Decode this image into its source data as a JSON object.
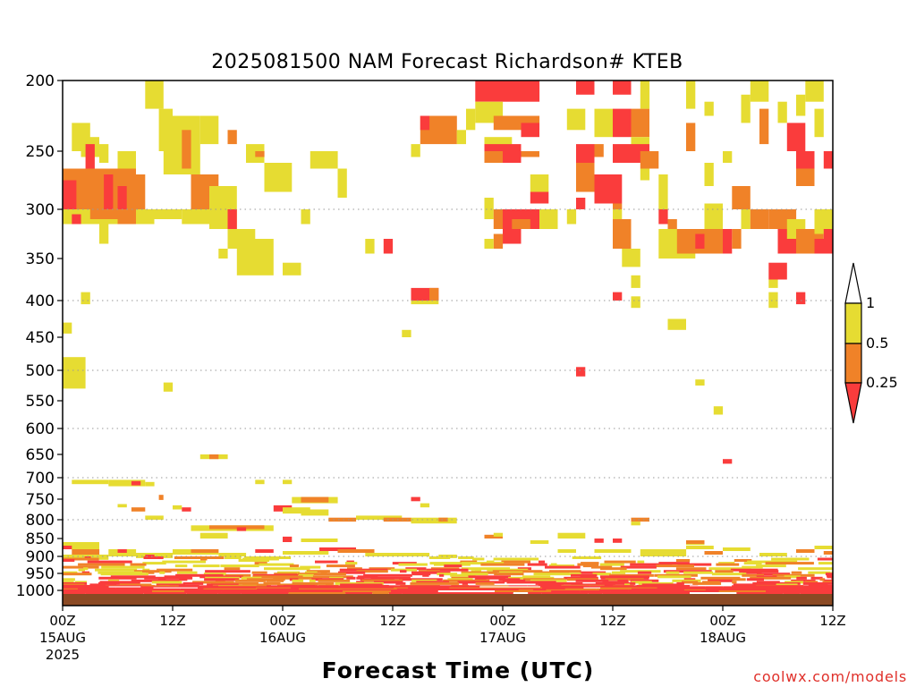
{
  "chart_data": {
    "type": "heatmap",
    "title": "2025081500 NAM Forecast Richardson# KTEB",
    "xlabel": "Forecast Time (UTC)",
    "ylabel": "",
    "credit": "coolwx.com/models",
    "x_unit": "forecast hour",
    "xlim": [
      0,
      84
    ],
    "y_scale": "pressure (hPa), reversed",
    "ylim": [
      1025,
      200
    ],
    "y_ticks": [
      200,
      250,
      300,
      350,
      400,
      450,
      500,
      550,
      600,
      650,
      700,
      750,
      800,
      850,
      900,
      950,
      1000
    ],
    "y_tick_labels": [
      "200",
      "250",
      "300",
      "350",
      "400",
      "450",
      "500",
      "550",
      "600",
      "650",
      "700",
      "750",
      "800",
      "850",
      "900",
      "950",
      "1000"
    ],
    "grid": "dotted horizontal at 300, 400, 500, 600, 700, 800, 900 hPa",
    "x_ticks": [
      {
        "hour": 0,
        "lines": [
          "00Z",
          "15AUG",
          "2025"
        ]
      },
      {
        "hour": 12,
        "lines": [
          "12Z"
        ]
      },
      {
        "hour": 24,
        "lines": [
          "00Z",
          "16AUG"
        ]
      },
      {
        "hour": 36,
        "lines": [
          "12Z"
        ]
      },
      {
        "hour": 48,
        "lines": [
          "00Z",
          "17AUG"
        ]
      },
      {
        "hour": 60,
        "lines": [
          "12Z"
        ]
      },
      {
        "hour": 72,
        "lines": [
          "00Z",
          "18AUG"
        ]
      },
      {
        "hour": 84,
        "lines": [
          "12Z"
        ]
      }
    ],
    "colorbar": {
      "ticks": [
        "1",
        "0.5",
        "0.25"
      ],
      "classes": [
        {
          "range": "0.5–1",
          "color": "#e6dc32"
        },
        {
          "range": "0.25–0.5",
          "color": "#f08228"
        },
        {
          "range": "< 0.25",
          "color": "#fa3c3c"
        }
      ],
      "extend": "both",
      "upper_extension_color": "#ffffff"
    },
    "terrain_color": "#8b4a24",
    "colors": {
      "y": "#e6dc32",
      "o": "#f08228",
      "r": "#fa3c3c"
    },
    "cells": [
      [
        "y",
        9,
        11,
        200,
        220
      ],
      [
        "y",
        10.5,
        12,
        220,
        250
      ],
      [
        "y",
        11,
        15,
        225,
        270
      ],
      [
        "o",
        13,
        14,
        235,
        265
      ],
      [
        "y",
        15,
        17,
        225,
        245
      ],
      [
        "o",
        18,
        19,
        235,
        245
      ],
      [
        "y",
        1,
        3,
        230,
        250
      ],
      [
        "y",
        2,
        4,
        240,
        255
      ],
      [
        "r",
        2.5,
        3.5,
        245,
        265
      ],
      [
        "y",
        4,
        5,
        245,
        260
      ],
      [
        "y",
        6,
        8,
        250,
        265
      ],
      [
        "o",
        0,
        8,
        265,
        300
      ],
      [
        "r",
        0,
        1.5,
        275,
        300
      ],
      [
        "r",
        4.5,
        5.5,
        270,
        300
      ],
      [
        "r",
        6,
        7,
        280,
        300
      ],
      [
        "o",
        7,
        9,
        270,
        300
      ],
      [
        "y",
        0,
        10,
        300,
        315
      ],
      [
        "o",
        3,
        6,
        300,
        310
      ],
      [
        "r",
        1,
        2,
        305,
        315
      ],
      [
        "o",
        6,
        8,
        300,
        315
      ],
      [
        "y",
        10,
        13,
        300,
        310
      ],
      [
        "y",
        4,
        5,
        315,
        335
      ],
      [
        "o",
        14,
        17,
        270,
        305
      ],
      [
        "y",
        16,
        19,
        280,
        320
      ],
      [
        "r",
        18,
        19,
        300,
        320
      ],
      [
        "y",
        13,
        16,
        300,
        315
      ],
      [
        "y",
        20,
        22,
        245,
        260
      ],
      [
        "o",
        21,
        22,
        250,
        255
      ],
      [
        "y",
        22,
        25,
        260,
        285
      ],
      [
        "y",
        27,
        30,
        250,
        265
      ],
      [
        "y",
        30,
        31,
        265,
        290
      ],
      [
        "y",
        26,
        27,
        300,
        315
      ],
      [
        "y",
        18,
        21,
        320,
        340
      ],
      [
        "y",
        19,
        23,
        330,
        370
      ],
      [
        "y",
        24,
        26,
        355,
        370
      ],
      [
        "y",
        17,
        18,
        340,
        350
      ],
      [
        "y",
        0,
        1,
        430,
        445
      ],
      [
        "y",
        2,
        3,
        390,
        405
      ],
      [
        "y",
        0,
        2.5,
        480,
        530
      ],
      [
        "y",
        11,
        12,
        520,
        535
      ],
      [
        "y",
        15,
        18,
        650,
        660
      ],
      [
        "o",
        16,
        17,
        650,
        660
      ],
      [
        "y",
        33,
        34,
        330,
        345
      ],
      [
        "r",
        35,
        36,
        330,
        345
      ],
      [
        "y",
        37,
        38,
        440,
        450
      ],
      [
        "y",
        38,
        39,
        245,
        255
      ],
      [
        "r",
        38,
        41,
        385,
        400
      ],
      [
        "o",
        40,
        41,
        385,
        400
      ],
      [
        "y",
        38,
        41,
        400,
        405
      ],
      [
        "o",
        39,
        43,
        225,
        245
      ],
      [
        "y",
        43,
        44,
        235,
        245
      ],
      [
        "r",
        39,
        40,
        225,
        235
      ],
      [
        "y",
        44,
        45,
        220,
        235
      ],
      [
        "r",
        45,
        52,
        200,
        215
      ],
      [
        "y",
        45,
        48,
        215,
        230
      ],
      [
        "o",
        47,
        52,
        225,
        235
      ],
      [
        "r",
        50,
        52,
        230,
        240
      ],
      [
        "y",
        46,
        49,
        240,
        250
      ],
      [
        "r",
        46,
        50,
        245,
        260
      ],
      [
        "o",
        46,
        48,
        250,
        260
      ],
      [
        "o",
        50,
        52,
        250,
        255
      ],
      [
        "y",
        51,
        53,
        270,
        285
      ],
      [
        "r",
        51,
        53,
        285,
        295
      ],
      [
        "y",
        46,
        47,
        290,
        310
      ],
      [
        "o",
        47,
        48,
        300,
        320
      ],
      [
        "r",
        48,
        52,
        300,
        320
      ],
      [
        "o",
        49,
        51,
        310,
        320
      ],
      [
        "y",
        52,
        54,
        300,
        320
      ],
      [
        "r",
        48,
        50,
        320,
        335
      ],
      [
        "o",
        47,
        48,
        325,
        340
      ],
      [
        "y",
        46,
        47,
        330,
        340
      ],
      [
        "y",
        55,
        56,
        300,
        315
      ],
      [
        "y",
        55,
        57,
        220,
        235
      ],
      [
        "r",
        56,
        58,
        245,
        260
      ],
      [
        "o",
        56,
        58,
        260,
        285
      ],
      [
        "r",
        56,
        57,
        290,
        300
      ],
      [
        "r",
        56,
        58,
        200,
        210
      ],
      [
        "y",
        58,
        60,
        220,
        240
      ],
      [
        "o",
        58,
        59,
        245,
        255
      ],
      [
        "r",
        60,
        62,
        200,
        210
      ],
      [
        "r",
        60,
        62,
        220,
        240
      ],
      [
        "o",
        62,
        64,
        220,
        240
      ],
      [
        "y",
        62,
        64,
        240,
        250
      ],
      [
        "r",
        60,
        64,
        245,
        260
      ],
      [
        "o",
        63,
        65,
        250,
        265
      ],
      [
        "y",
        63,
        64,
        265,
        275
      ],
      [
        "y",
        63,
        64,
        200,
        220
      ],
      [
        "r",
        58,
        61,
        270,
        295
      ],
      [
        "o",
        60,
        61,
        295,
        300
      ],
      [
        "y",
        60,
        61,
        300,
        320
      ],
      [
        "o",
        60,
        62,
        310,
        340
      ],
      [
        "y",
        61,
        63,
        340,
        360
      ],
      [
        "y",
        62,
        63,
        370,
        385
      ],
      [
        "r",
        60,
        61,
        390,
        400
      ],
      [
        "y",
        62,
        63,
        395,
        410
      ],
      [
        "y",
        65,
        66,
        270,
        300
      ],
      [
        "y",
        65,
        69,
        320,
        350
      ],
      [
        "o",
        67,
        70,
        320,
        345
      ],
      [
        "r",
        69,
        70,
        325,
        340
      ],
      [
        "r",
        65,
        66,
        300,
        315
      ],
      [
        "o",
        66,
        67,
        310,
        320
      ],
      [
        "y",
        66,
        68,
        425,
        440
      ],
      [
        "y",
        68,
        69,
        200,
        220
      ],
      [
        "o",
        68,
        69,
        230,
        250
      ],
      [
        "y",
        70,
        71,
        215,
        225
      ],
      [
        "y",
        72,
        73,
        250,
        260
      ],
      [
        "y",
        70,
        71,
        260,
        280
      ],
      [
        "o",
        73,
        75,
        280,
        300
      ],
      [
        "y",
        70,
        72,
        295,
        320
      ],
      [
        "o",
        70,
        72,
        320,
        345
      ],
      [
        "r",
        72,
        73,
        330,
        345
      ],
      [
        "o",
        73,
        74,
        320,
        340
      ],
      [
        "y",
        74,
        75,
        300,
        320
      ],
      [
        "y",
        74,
        75,
        210,
        230
      ],
      [
        "y",
        75,
        77,
        200,
        215
      ],
      [
        "o",
        75,
        77,
        300,
        320
      ],
      [
        "o",
        76,
        77,
        220,
        245
      ],
      [
        "y",
        78,
        79,
        215,
        230
      ],
      [
        "r",
        79,
        81,
        230,
        250
      ],
      [
        "y",
        80,
        81,
        210,
        225
      ],
      [
        "y",
        81,
        83,
        200,
        215
      ],
      [
        "r",
        80,
        82,
        250,
        265
      ],
      [
        "o",
        80,
        82,
        265,
        280
      ],
      [
        "y",
        82,
        83,
        220,
        240
      ],
      [
        "r",
        83,
        84,
        250,
        265
      ],
      [
        "o",
        77,
        80,
        300,
        320
      ],
      [
        "r",
        78,
        80,
        320,
        345
      ],
      [
        "y",
        79,
        81,
        310,
        330
      ],
      [
        "o",
        80,
        83,
        320,
        345
      ],
      [
        "r",
        82,
        84,
        330,
        345
      ],
      [
        "y",
        82,
        84,
        300,
        325
      ],
      [
        "r",
        77,
        79,
        355,
        375
      ],
      [
        "y",
        77,
        78,
        375,
        385
      ],
      [
        "y",
        77,
        78,
        390,
        410
      ],
      [
        "r",
        80,
        81,
        390,
        405
      ],
      [
        "r",
        83,
        84,
        320,
        330
      ],
      [
        "r",
        72,
        73,
        320,
        330
      ],
      [
        "y",
        69,
        70,
        515,
        525
      ],
      [
        "y",
        71,
        72,
        560,
        575
      ],
      [
        "r",
        56,
        57,
        495,
        510
      ],
      [
        "r",
        72,
        73,
        660,
        670
      ],
      [
        "y",
        1,
        5,
        705,
        715
      ],
      [
        "y",
        5,
        9,
        705,
        720
      ],
      [
        "r",
        7.5,
        8.5,
        708,
        718
      ],
      [
        "y",
        9,
        10,
        710,
        720
      ],
      [
        "y",
        21,
        22,
        705,
        715
      ],
      [
        "y",
        24,
        25,
        705,
        715
      ],
      [
        "o",
        10.5,
        11,
        740,
        752
      ],
      [
        "y",
        6,
        7,
        762,
        770
      ],
      [
        "o",
        7.5,
        9,
        770,
        780
      ],
      [
        "y",
        12,
        13,
        765,
        775
      ],
      [
        "r",
        13,
        14,
        770,
        780
      ],
      [
        "y",
        25,
        30,
        745,
        760
      ],
      [
        "o",
        26,
        29,
        745,
        758
      ],
      [
        "r",
        23,
        25,
        765,
        780
      ],
      [
        "y",
        24,
        27,
        770,
        785
      ],
      [
        "y",
        26,
        29,
        775,
        790
      ],
      [
        "r",
        38,
        39,
        745,
        755
      ],
      [
        "y",
        39,
        40,
        760,
        770
      ],
      [
        "y",
        9,
        11,
        790,
        800
      ],
      [
        "o",
        29,
        32,
        795,
        805
      ],
      [
        "y",
        32,
        37,
        790,
        800
      ],
      [
        "o",
        35,
        38,
        795,
        805
      ],
      [
        "y",
        38,
        43,
        795,
        810
      ],
      [
        "o",
        41,
        42,
        795,
        805
      ],
      [
        "o",
        62,
        64,
        795,
        805
      ],
      [
        "y",
        62,
        63,
        805,
        815
      ],
      [
        "o",
        46,
        48,
        840,
        850
      ],
      [
        "y",
        47,
        48,
        835,
        845
      ],
      [
        "y",
        14,
        23,
        815,
        830
      ],
      [
        "o",
        16,
        22,
        815,
        825
      ],
      [
        "r",
        19,
        20,
        820,
        830
      ],
      [
        "y",
        15,
        18,
        835,
        850
      ],
      [
        "r",
        24,
        25,
        845,
        860
      ],
      [
        "y",
        26,
        30,
        850,
        860
      ],
      [
        "y",
        54,
        57,
        835,
        850
      ],
      [
        "r",
        58,
        59,
        850,
        862
      ],
      [
        "r",
        60,
        61,
        850,
        862
      ],
      [
        "y",
        51,
        53,
        855,
        865
      ],
      [
        "y",
        68,
        70,
        855,
        868
      ],
      [
        "o",
        68,
        70,
        855,
        865
      ],
      [
        "y",
        0,
        4,
        860,
        880
      ],
      [
        "r",
        0,
        1,
        870,
        880
      ],
      [
        "o",
        1,
        4,
        880,
        895
      ],
      [
        "y",
        0,
        5,
        895,
        910
      ],
      [
        "y",
        5,
        8,
        880,
        900
      ],
      [
        "r",
        6,
        7,
        880,
        890
      ],
      [
        "y",
        8,
        12,
        890,
        905
      ],
      [
        "r",
        9,
        10,
        895,
        905
      ],
      [
        "y",
        12,
        17,
        880,
        895
      ],
      [
        "o",
        14,
        17,
        880,
        890
      ],
      [
        "y",
        17,
        20,
        890,
        900
      ],
      [
        "r",
        21,
        23,
        880,
        890
      ],
      [
        "y",
        24,
        29,
        885,
        895
      ],
      [
        "r",
        28,
        32,
        875,
        885
      ],
      [
        "o",
        30,
        34,
        880,
        890
      ],
      [
        "y",
        33,
        40,
        890,
        900
      ],
      [
        "y",
        41,
        43,
        895,
        905
      ],
      [
        "y",
        54,
        56,
        880,
        890
      ],
      [
        "y",
        58,
        62,
        880,
        890
      ],
      [
        "y",
        63,
        68,
        880,
        900
      ],
      [
        "y",
        68,
        71,
        870,
        880
      ],
      [
        "o",
        70,
        72,
        885,
        895
      ],
      [
        "y",
        72,
        75,
        875,
        885
      ],
      [
        "y",
        76,
        79,
        890,
        900
      ],
      [
        "o",
        80,
        82,
        880,
        890
      ],
      [
        "y",
        82,
        84,
        870,
        880
      ],
      [
        "o",
        83,
        84,
        885,
        895
      ]
    ],
    "low_layer": {
      "description": "rows of small-Richardson-number cells between ~900 and 1000 hPa",
      "bands": [
        {
          "p0": 900,
          "p1": 985,
          "pattern": "mixed yellow/orange/red lines"
        },
        {
          "p0": 985,
          "p1": 1005,
          "pattern": "mostly red"
        }
      ]
    }
  }
}
